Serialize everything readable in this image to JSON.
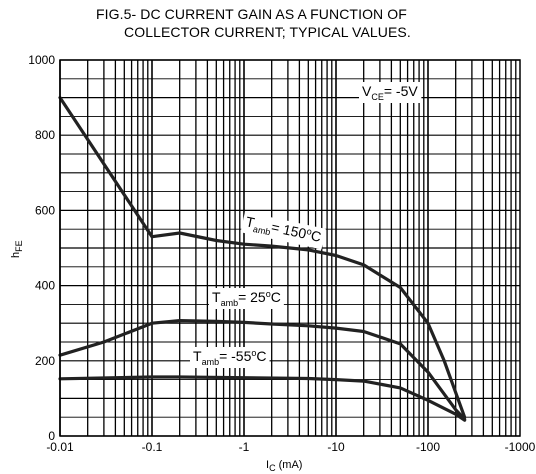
{
  "title_line1": "FIG.5- DC CURRENT GAIN AS A FUNCTION OF",
  "title_line2": "COLLECTOR CURRENT; TYPICAL VALUES.",
  "chart_data": {
    "type": "line",
    "title": "FIG.5- DC CURRENT GAIN AS A FUNCTION OF COLLECTOR CURRENT; TYPICAL VALUES.",
    "xlabel": {
      "main": "I",
      "sub": "C",
      "unit": " (mA)"
    },
    "ylabel": {
      "main": "h",
      "sub": "FE"
    },
    "x_scale": "log",
    "x_ticks": [
      {
        "value": 0.01,
        "label": "-0.01"
      },
      {
        "value": 0.1,
        "label": "-0.1"
      },
      {
        "value": 1,
        "label": "-1"
      },
      {
        "value": 10,
        "label": "-10"
      },
      {
        "value": 100,
        "label": "-100"
      },
      {
        "value": 1000,
        "label": "-1000"
      }
    ],
    "xlim": [
      0.01,
      1000
    ],
    "ylim": [
      0,
      1000
    ],
    "y_ticks": [
      0,
      200,
      400,
      600,
      800,
      1000
    ],
    "grid": true,
    "condition": {
      "main": "V",
      "sub": "CE",
      "rest": "= -5V"
    },
    "series": [
      {
        "name": "T_amb = 150°C",
        "label": {
          "main": "T",
          "sub": "amb",
          "rest": "= 150",
          "sup": "o",
          "unit": "C"
        },
        "points": [
          [
            0.01,
            900
          ],
          [
            0.1,
            530
          ],
          [
            0.2,
            540
          ],
          [
            0.5,
            520
          ],
          [
            1,
            510
          ],
          [
            2,
            505
          ],
          [
            5,
            495
          ],
          [
            10,
            480
          ],
          [
            20,
            455
          ],
          [
            50,
            395
          ],
          [
            100,
            300
          ],
          [
            150,
            200
          ],
          [
            250,
            50
          ]
        ]
      },
      {
        "name": "T_amb = 25°C",
        "label": {
          "main": "T",
          "sub": "amb",
          "rest": "= 25",
          "sup": "o",
          "unit": "C"
        },
        "points": [
          [
            0.01,
            215
          ],
          [
            0.03,
            250
          ],
          [
            0.1,
            300
          ],
          [
            0.2,
            307
          ],
          [
            0.5,
            305
          ],
          [
            1,
            302
          ],
          [
            2,
            298
          ],
          [
            5,
            293
          ],
          [
            10,
            287
          ],
          [
            20,
            278
          ],
          [
            50,
            245
          ],
          [
            100,
            170
          ],
          [
            200,
            70
          ],
          [
            250,
            45
          ]
        ]
      },
      {
        "name": "T_amb = -55°C",
        "label": {
          "main": "T",
          "sub": "amb",
          "rest": "= -55",
          "sup": "o",
          "unit": "C"
        },
        "points": [
          [
            0.01,
            152
          ],
          [
            0.1,
            157
          ],
          [
            0.2,
            157
          ],
          [
            1,
            155
          ],
          [
            5,
            153
          ],
          [
            10,
            150
          ],
          [
            20,
            146
          ],
          [
            50,
            128
          ],
          [
            100,
            95
          ],
          [
            200,
            58
          ],
          [
            250,
            42
          ]
        ]
      }
    ]
  }
}
